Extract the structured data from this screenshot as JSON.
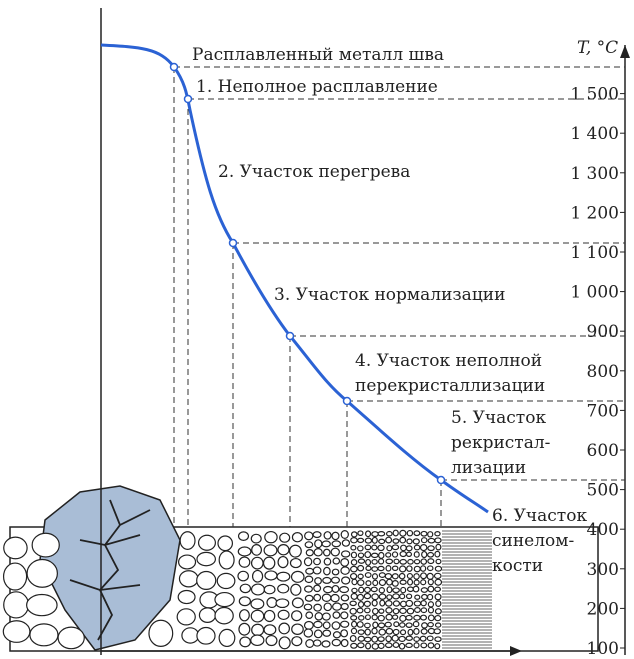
{
  "axis": {
    "title": "T, °C",
    "ticks": [
      "100",
      "200",
      "300",
      "400",
      "500",
      "600",
      "700",
      "800",
      "900",
      "1 000",
      "1 100",
      "1 200",
      "1 300",
      "1 400",
      "1 500"
    ]
  },
  "zones": [
    {
      "lines": [
        "Расплавленный металл шва"
      ]
    },
    {
      "lines": [
        "1. Неполное расплавление"
      ]
    },
    {
      "lines": [
        "2. Участок перегрева"
      ]
    },
    {
      "lines": [
        "3. Участок нормализации"
      ]
    },
    {
      "lines": [
        "4. Участок неполной",
        "перекристаллизации"
      ]
    },
    {
      "lines": [
        "5. Участок",
        "рекристал-",
        "лизации"
      ]
    },
    {
      "lines": [
        "6. Участок",
        "синелом-",
        "кости"
      ]
    }
  ]
}
